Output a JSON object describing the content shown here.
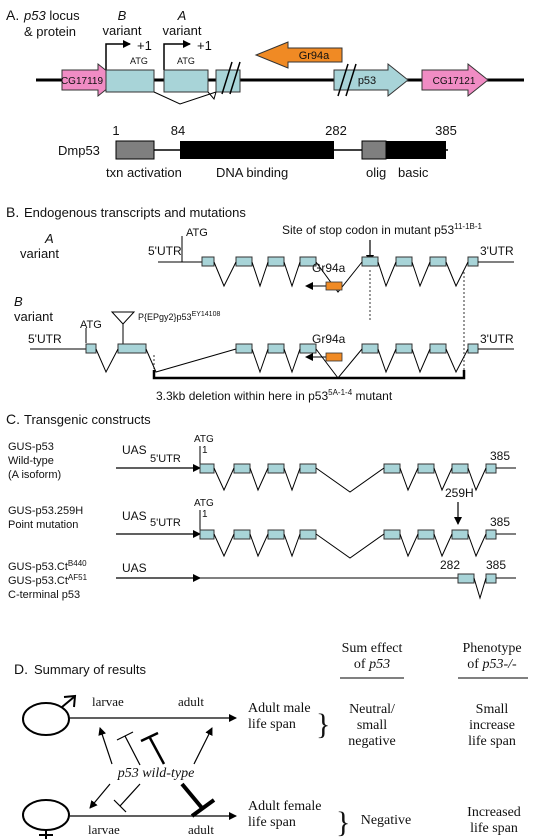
{
  "panelA": {
    "letter": "A.",
    "title_italic": "p53",
    "title_rest": " locus",
    "title_line2": "& protein",
    "variant_b_letter": "B",
    "variant_a_letter": "A",
    "variant_word": "variant",
    "plus_one": "+1",
    "atg": "ATG",
    "gene_left": "CG17119",
    "gene_right": "CG17121",
    "gene_gr94a": "Gr94a",
    "gene_p53": "p53",
    "protein_name": "Dmp53",
    "pos": [
      "1",
      "84",
      "282",
      "385"
    ],
    "domains": [
      "txn activation",
      "DNA binding",
      "olig",
      "basic"
    ]
  },
  "panelB": {
    "letter": "B.",
    "title": "Endogenous transcripts and mutations",
    "stop_site": "Site of stop codon in mutant p53",
    "stop_sup": "11-1B-1",
    "variant_a_letter": "A",
    "variant_b_letter": "B",
    "variant_word": "variant",
    "utr5": "5'UTR",
    "utr3": "3'UTR",
    "atg": "ATG",
    "gr94a": "Gr94a",
    "insertion": "P{EPgy2}p53",
    "insertion_sup": "EY14108",
    "deletion": "3.3kb deletion within here in p53",
    "deletion_sup": "5A-1-4",
    "deletion_suffix": " mutant"
  },
  "panelC": {
    "letter": "C.",
    "title": "Transgenic constructs",
    "c1": [
      "GUS-p53",
      "Wild-type",
      "(A isoform)"
    ],
    "c2": [
      "GUS-p53.259H",
      "Point mutation"
    ],
    "c3_a": "GUS-p53.Ct",
    "c3_a_sup": "B440",
    "c3_b": "GUS-p53.Ct",
    "c3_b_sup": "AF51",
    "c3_c": "C-terminal p53",
    "uas": "UAS",
    "utr5": "5'UTR",
    "atg": "ATG",
    "one": "1",
    "n385": "385",
    "n282": "282",
    "mut": "259H"
  },
  "panelD": {
    "letter": "D.",
    "title": "Summary of results",
    "col1": [
      "Sum effect",
      "of ",
      "p53"
    ],
    "col2": [
      "Phenotype",
      "of ",
      "p53-/-"
    ],
    "larvae": "larvae",
    "adult": "adult",
    "male_life": [
      "Adult male",
      "life span"
    ],
    "female_life": [
      "Adult female",
      "life span"
    ],
    "wildtype": "p53 wild-type",
    "male_sum": [
      "Neutral/",
      "small",
      "negative"
    ],
    "male_pheno": [
      "Small",
      "increase",
      "life span"
    ],
    "female_sum": "Negative",
    "female_pheno": [
      "Increased",
      "life span"
    ]
  },
  "colors": {
    "exon": "#a8d4d8",
    "pink": "#f08cc4",
    "orange": "#f08a24",
    "gray": "#7f7f7f",
    "black": "#000000"
  }
}
